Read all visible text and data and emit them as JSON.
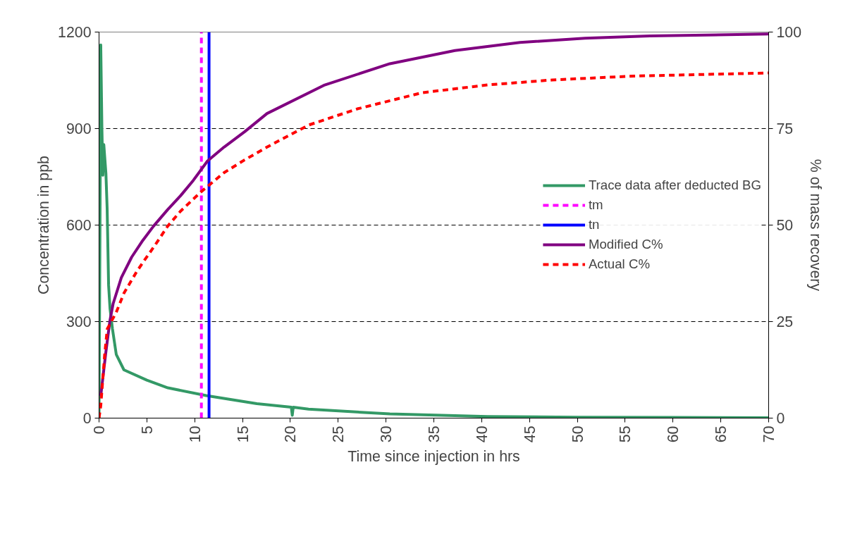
{
  "chart_data": {
    "type": "line",
    "xlabel": "Time since injection in hrs",
    "ylabel": "Concentration in ppb",
    "y2label": "% of mass recovery",
    "xlim": [
      0,
      70
    ],
    "xticks": [
      0,
      5,
      10,
      15,
      20,
      25,
      30,
      35,
      40,
      45,
      50,
      55,
      60,
      65,
      70
    ],
    "ylim": [
      0,
      1200
    ],
    "yticks": [
      0,
      300,
      600,
      900,
      1200
    ],
    "y2lim": [
      0,
      100
    ],
    "y2ticks": [
      0,
      25,
      50,
      75,
      100
    ],
    "grid": "y",
    "legend": "right",
    "line_style": "solid",
    "marker": "none",
    "series": [
      {
        "name": "Trace data after deducted BG",
        "color": "#339966",
        "x": [
          0,
          0.1,
          0.18,
          0.3,
          0.4,
          0.5,
          0.72,
          0.85,
          1.0,
          1.15,
          1.4,
          1.8,
          2.6,
          5,
          7.2,
          11.2,
          16.5,
          20.1,
          20.2,
          20.3,
          21.9,
          30.4,
          40.6,
          50,
          60,
          70
        ],
        "values": [
          0,
          600,
          1160,
          900,
          755,
          850,
          760,
          650,
          413,
          340,
          278,
          198,
          150,
          118,
          94,
          70,
          45,
          34,
          9,
          34,
          28,
          13,
          5,
          3,
          2,
          1
        ]
      },
      {
        "name": "tm",
        "color": "#ff00ff",
        "line_style": "dashed",
        "x": [
          10.7,
          10.7
        ],
        "values": [
          0,
          1200
        ]
      },
      {
        "name": "tn",
        "color": "#0000ff",
        "x": [
          11.5,
          11.5
        ],
        "values": [
          0,
          1200
        ]
      },
      {
        "name": "Modified C%",
        "color": "#800080",
        "axis": "y2",
        "x": [
          0.18,
          0.72,
          1.13,
          1.48,
          2.33,
          3.41,
          4.48,
          5.69,
          7.17,
          8.52,
          9.86,
          11.34,
          13.07,
          15.23,
          17.56,
          23.6,
          30.4,
          37.2,
          44,
          50.8,
          57.6,
          70
        ],
        "values": [
          5.8,
          17.2,
          25.1,
          29.7,
          36.4,
          41.7,
          45.7,
          49.7,
          54,
          57.6,
          61.6,
          66.6,
          70.2,
          74.2,
          78.9,
          86.3,
          91.8,
          95.2,
          97.3,
          98.4,
          99,
          99.5
        ]
      },
      {
        "name": "Actual C%",
        "color": "#ff0000",
        "axis": "y2",
        "line_style": "dashed",
        "x": [
          0,
          0.18,
          0.59,
          0.86,
          1.8,
          2.61,
          3.95,
          4.89,
          5.83,
          7.17,
          8.52,
          10.66,
          13.08,
          15.23,
          17.56,
          21.9,
          27,
          33.8,
          40.6,
          47.4,
          55.9,
          70
        ],
        "values": [
          0,
          3.2,
          16.5,
          23.1,
          27.4,
          32.4,
          38,
          41.4,
          44.7,
          49.7,
          53.6,
          58.6,
          63.6,
          66.9,
          70.2,
          75.9,
          80.1,
          84.3,
          86.3,
          87.6,
          88.6,
          89.4
        ]
      }
    ]
  }
}
